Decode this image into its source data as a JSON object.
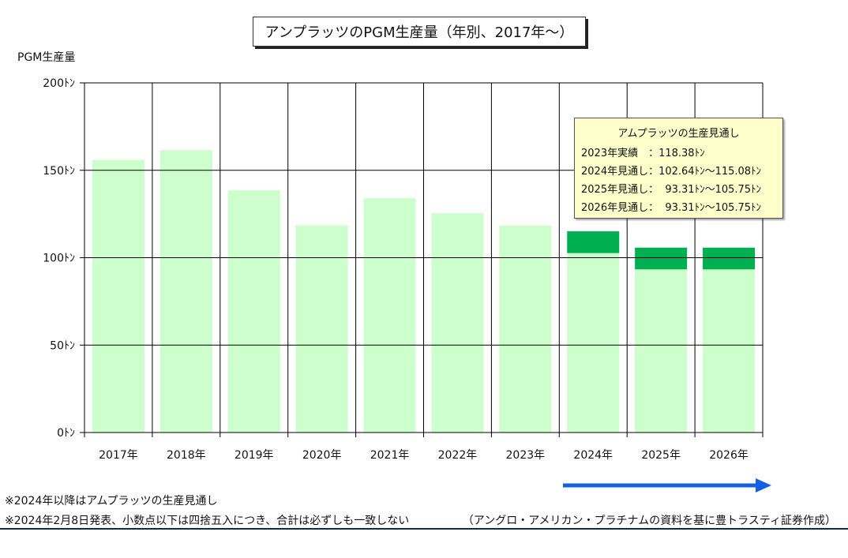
{
  "title": "アンプラッツのPGM生産量（年別、2017年～）",
  "y_axis_title": "PGM生産量",
  "colors": {
    "actual_bar": "#ccffcc",
    "range_bar": "#00b050",
    "arrow": "#1560e0",
    "grid": "#000000"
  },
  "chart_data": {
    "type": "bar",
    "categories": [
      "2017年",
      "2018年",
      "2019年",
      "2020年",
      "2021年",
      "2022年",
      "2023年",
      "2024年",
      "2025年",
      "2026年"
    ],
    "values": [
      156,
      161.5,
      138.5,
      118.5,
      134,
      125.5,
      118.38,
      102.64,
      93.31,
      93.31
    ],
    "range_high": [
      null,
      null,
      null,
      null,
      null,
      null,
      null,
      115.08,
      105.75,
      105.75
    ],
    "ylim": [
      0,
      200
    ],
    "y_ticks": [
      0,
      50,
      100,
      150,
      200
    ],
    "y_tick_labels": [
      "0ﾄﾝ",
      "50ﾄﾝ",
      "100ﾄﾝ",
      "150ﾄﾝ",
      "200ﾄﾝ"
    ],
    "grid": true
  },
  "info_box": {
    "title": "アムプラッツの生産見通し",
    "lines": [
      "2023年実績　：118.38ﾄﾝ",
      "2024年見通し：102.64ﾄﾝ～115.08ﾄﾝ",
      "2025年見通し：  93.31ﾄﾝ～105.75ﾄﾝ",
      "2026年見通し：  93.31ﾄﾝ～105.75ﾄﾝ"
    ]
  },
  "notes": [
    "※2024年以降はアムプラッツの生産見通し",
    "※2024年2月8日発表、小数点以下は四捨五入につき、合計は必ずしも一致しない"
  ],
  "source": "（アングロ・アメリカン・プラチナムの資料を基に豊トラスティ証券作成）"
}
